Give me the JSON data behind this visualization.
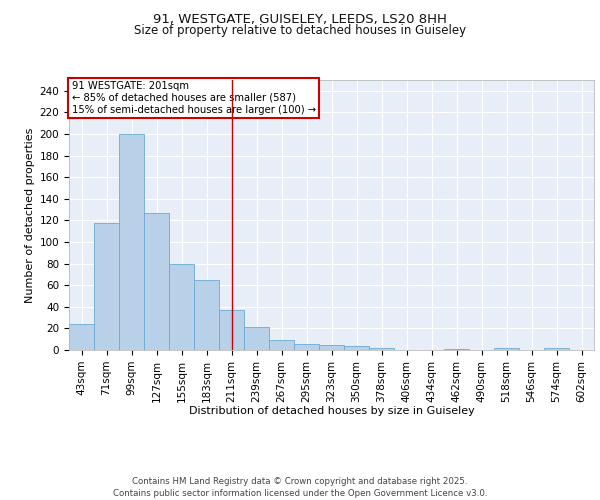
{
  "title1": "91, WESTGATE, GUISELEY, LEEDS, LS20 8HH",
  "title2": "Size of property relative to detached houses in Guiseley",
  "xlabel": "Distribution of detached houses by size in Guiseley",
  "ylabel": "Number of detached properties",
  "categories": [
    "43sqm",
    "71sqm",
    "99sqm",
    "127sqm",
    "155sqm",
    "183sqm",
    "211sqm",
    "239sqm",
    "267sqm",
    "295sqm",
    "323sqm",
    "350sqm",
    "378sqm",
    "406sqm",
    "434sqm",
    "462sqm",
    "490sqm",
    "518sqm",
    "546sqm",
    "574sqm",
    "602sqm"
  ],
  "values": [
    24,
    118,
    200,
    127,
    80,
    65,
    37,
    21,
    9,
    6,
    5,
    4,
    2,
    0,
    0,
    1,
    0,
    2,
    0,
    2,
    0
  ],
  "bar_color": "#b8d0e8",
  "bar_edge_color": "#6aaad4",
  "highlight_bar_index": 6,
  "highlight_color": "#cc0000",
  "annotation_text": "91 WESTGATE: 201sqm\n← 85% of detached houses are smaller (587)\n15% of semi-detached houses are larger (100) →",
  "annotation_box_color": "#ffffff",
  "annotation_box_edge_color": "#cc0000",
  "ylim": [
    0,
    250
  ],
  "yticks": [
    0,
    20,
    40,
    60,
    80,
    100,
    120,
    140,
    160,
    180,
    200,
    220,
    240
  ],
  "bg_color": "#e8eef8",
  "grid_color": "#ffffff",
  "footer": "Contains HM Land Registry data © Crown copyright and database right 2025.\nContains public sector information licensed under the Open Government Licence v3.0.",
  "title_fontsize": 9.5,
  "subtitle_fontsize": 8.5,
  "axis_label_fontsize": 8,
  "tick_fontsize": 7.5,
  "footer_fontsize": 6.2
}
